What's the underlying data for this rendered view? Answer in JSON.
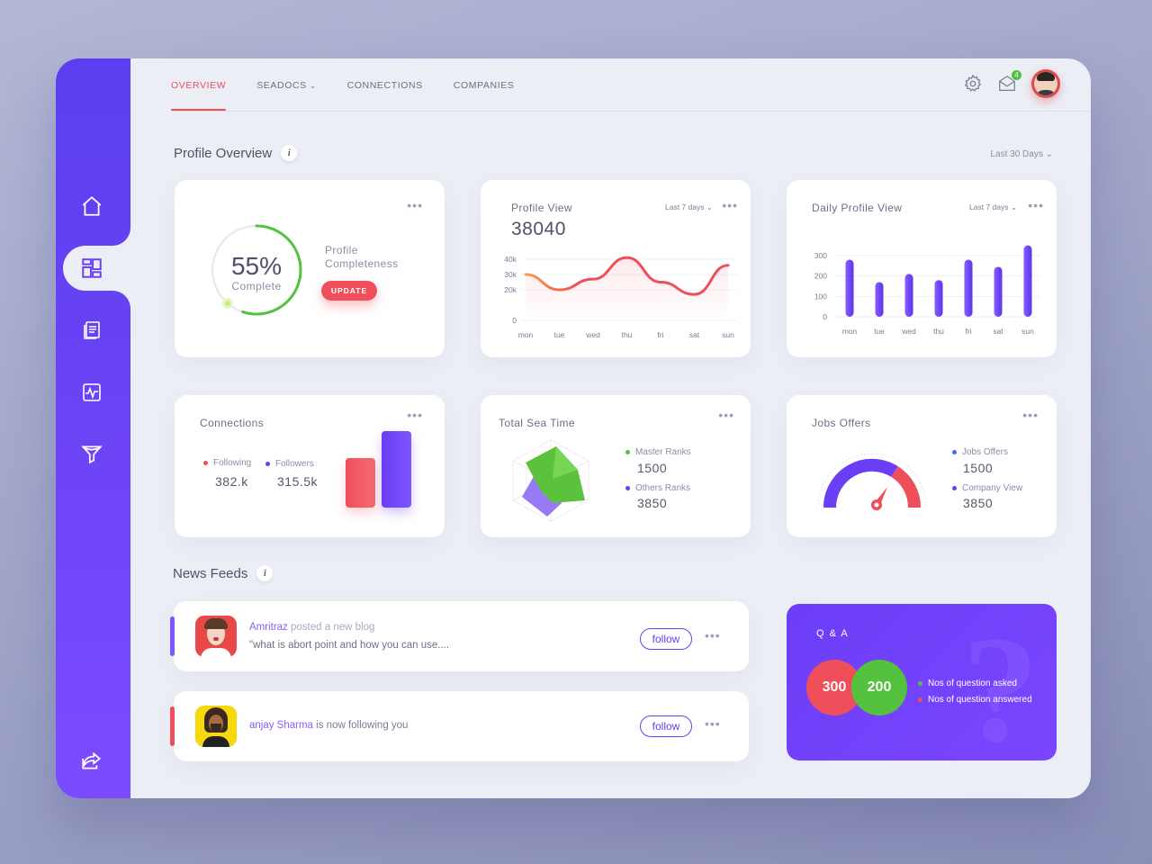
{
  "nav": {
    "items": [
      {
        "label": "OVERVIEW",
        "active": true
      },
      {
        "label": "SEADOCS",
        "has_dropdown": true
      },
      {
        "label": "CONNECTIONS"
      },
      {
        "label": "COMPANIES"
      }
    ]
  },
  "header": {
    "notification_count": "4"
  },
  "sidebar": {
    "icons": [
      "home-icon",
      "dashboard-icon",
      "documents-icon",
      "activity-icon",
      "filter-icon",
      "share-icon"
    ],
    "active": "dashboard-icon"
  },
  "profile_overview": {
    "title": "Profile Overview",
    "info": "i",
    "range": "Last 30 Days"
  },
  "completeness": {
    "percent": "55%",
    "percent_value": 55,
    "sub": "Complete",
    "label": "Profile Completeness",
    "button": "UPDATE"
  },
  "profile_view": {
    "title": "Profile View",
    "total": "38040",
    "range": "Last 7 days"
  },
  "daily_profile_view": {
    "title": "Daily Profile View",
    "range": "Last 7 days"
  },
  "connections": {
    "title": "Connections",
    "following_label": "Following",
    "following_value": "382.k",
    "followers_label": "Followers",
    "followers_value": "315.5k"
  },
  "sea_time": {
    "title": "Total Sea Time",
    "master_label": "Master Ranks",
    "master_value": "1500",
    "others_label": "Others Ranks",
    "others_value": "3850"
  },
  "jobs": {
    "title": "Jobs Offers",
    "jobs_label": "Jobs Offers",
    "jobs_value": "1500",
    "company_label": "Company View",
    "company_value": "3850"
  },
  "news": {
    "title": "News Feeds",
    "info": "i",
    "items": [
      {
        "name": "Amritraz",
        "action": "posted a new blog",
        "text": "\"what is abort point and how you can use....",
        "button": "follow"
      },
      {
        "name": "anjay Sharma",
        "action": "is now following you",
        "button": "follow"
      }
    ]
  },
  "qa": {
    "title": "Q & A",
    "asked_value": "300",
    "answered_value": "200",
    "asked_label": "Nos of question asked",
    "answered_label": "Nos of question answered"
  },
  "colors": {
    "accent": "#6a3ef5",
    "red": "#ef4f5a",
    "green": "#4fc13e"
  },
  "chart_data": [
    {
      "type": "line",
      "title": "Profile View",
      "categories": [
        "mon",
        "tue",
        "wed",
        "thu",
        "fri",
        "sat",
        "sun"
      ],
      "y_ticks": [
        "40k",
        "30k",
        "20k",
        "0"
      ],
      "ylim": [
        0,
        40000
      ],
      "values": [
        30000,
        20000,
        27000,
        41000,
        25000,
        17000,
        36000
      ]
    },
    {
      "type": "bar",
      "title": "Daily Profile View",
      "categories": [
        "mon",
        "tue",
        "wed",
        "thu",
        "fri",
        "sat",
        "sun"
      ],
      "y_ticks": [
        "300",
        "200",
        "100",
        "0"
      ],
      "ylim": [
        0,
        300
      ],
      "values": [
        280,
        170,
        210,
        180,
        280,
        245,
        350
      ]
    }
  ]
}
